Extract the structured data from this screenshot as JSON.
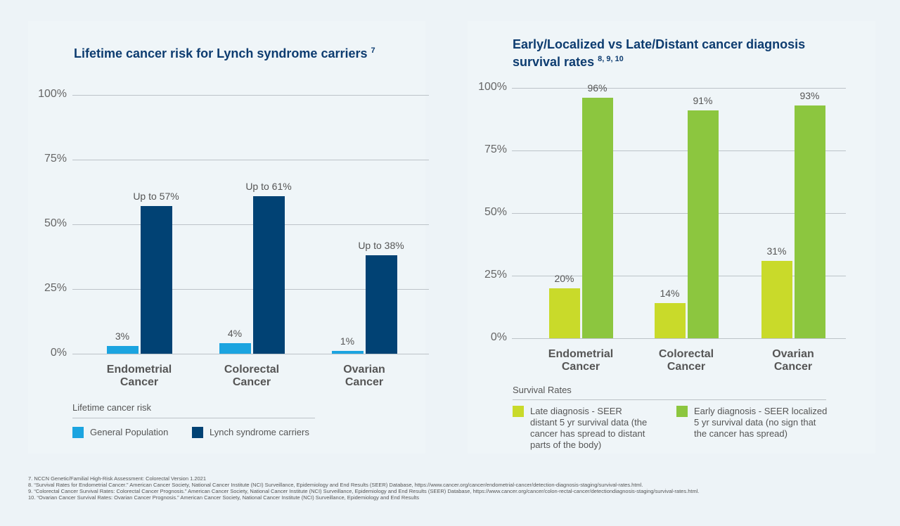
{
  "colors": {
    "general": "#1ba4e0",
    "lynch": "#014274",
    "late": "#c9da2a",
    "early": "#8cc63f",
    "title": "#0d3c70"
  },
  "chart_data": [
    {
      "type": "bar",
      "title": "Lifetime cancer risk for Lynch syndrome carriers",
      "title_ref": "7",
      "categories": [
        "Endometrial Cancer",
        "Colorectal Cancer",
        "Ovarian Cancer"
      ],
      "category_lines": [
        [
          "Endometrial",
          "Cancer"
        ],
        [
          "Colorectal",
          "Cancer"
        ],
        [
          "Ovarian",
          "Cancer"
        ]
      ],
      "ylim": [
        0,
        100
      ],
      "yticks": [
        "0%",
        "25%",
        "50%",
        "75%",
        "100%"
      ],
      "grid": true,
      "legend_title": "Lifetime cancer risk",
      "legend_placement": "bottom",
      "series": [
        {
          "name": "General Population",
          "values": [
            3,
            4,
            1
          ],
          "labels": [
            "3%",
            "4%",
            "1%"
          ]
        },
        {
          "name": "Lynch syndrome carriers",
          "values": [
            57,
            61,
            38
          ],
          "labels": [
            "Up to 57%",
            "Up to 61%",
            "Up to 38%"
          ]
        }
      ]
    },
    {
      "type": "bar",
      "title_lines": [
        "Early/Localized vs Late/Distant cancer diagnosis",
        "survival rates"
      ],
      "title_ref": "8, 9, 10",
      "categories": [
        "Endometrial Cancer",
        "Colorectal Cancer",
        "Ovarian Cancer"
      ],
      "category_lines": [
        [
          "Endometrial",
          "Cancer"
        ],
        [
          "Colorectal",
          "Cancer"
        ],
        [
          "Ovarian",
          "Cancer"
        ]
      ],
      "ylim": [
        0,
        100
      ],
      "yticks": [
        "0%",
        "25%",
        "50%",
        "75%",
        "100%"
      ],
      "grid": true,
      "legend_title": "Survival Rates",
      "legend_placement": "bottom",
      "series": [
        {
          "name": "Late diagnosis - SEER distant 5 yr survival data (the cancer has spread to distant parts of the body)",
          "name_lines": [
            "Late diagnosis - SEER",
            "distant 5 yr survival data (the",
            "cancer has spread to distant",
            "parts of the body)"
          ],
          "values": [
            20,
            14,
            31
          ],
          "labels": [
            "20%",
            "14%",
            "31%"
          ]
        },
        {
          "name": "Early diagnosis - SEER localized 5 yr survival data (no sign that the cancer has spread)",
          "name_lines": [
            "Early diagnosis - SEER localized",
            "5 yr survival data (no sign that",
            "the cancer has spread)"
          ],
          "values": [
            96,
            91,
            93
          ],
          "labels": [
            "96%",
            "91%",
            "93%"
          ]
        }
      ]
    }
  ],
  "footnotes": [
    "7. NCCN Genetic/Familial High-Risk Assessment: Colorectal Version 1.2021",
    "8. “Survival Rates for Endometrial Cancer.” American Cancer Society, National Cancer Institute (NCI) Surveillance, Epidemiology and End Results (SEER) Database, https://www.cancer.org/cancer/endometrial-cancer/detection-diagnosis-staging/survival-rates.html.",
    "9. “Colorectal Cancer Survival Rates: Colorectal Cancer Prognosis.” American Cancer Society, National Cancer Institute (NCI) Surveillance, Epidemiology and End Results (SEER) Database, https://www.cancer.org/cancer/colon-rectal-cancer/detectiondiagnosis-staging/survival-rates.html.",
    "10. “Ovarian Cancer Survival Rates: Ovarian Cancer Prognosis.” American Cancer Society, National Cancer Institute (NCI) Surveillance, Epidemiology and End Results"
  ]
}
